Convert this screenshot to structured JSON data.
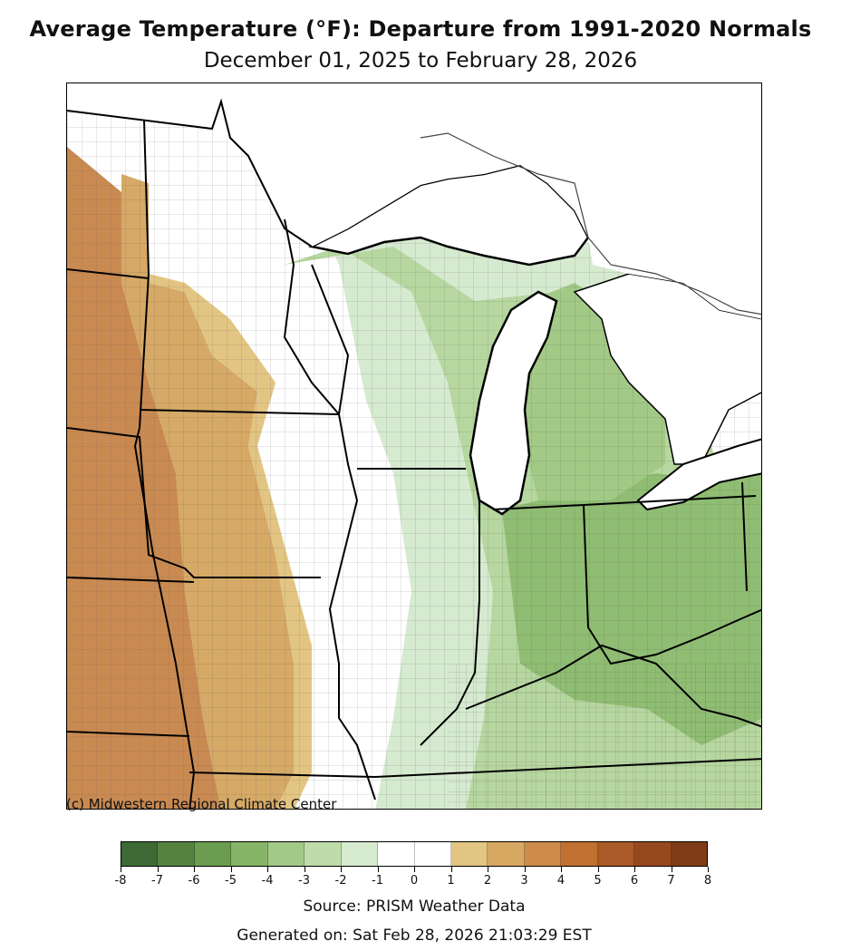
{
  "title": "Average Temperature (°F): Departure from 1991-2020 Normals",
  "subtitle": "December 01, 2025 to February 28, 2026",
  "copyright": "(c) Midwestern Regional Climate Center",
  "legend": {
    "ticks": [
      "-8",
      "-7",
      "-6",
      "-5",
      "-4",
      "-3",
      "-2",
      "-1",
      "0",
      "1",
      "2",
      "3",
      "4",
      "5",
      "6",
      "7",
      "8"
    ],
    "colors": [
      "#3e6b35",
      "#54833f",
      "#6b9d51",
      "#86b567",
      "#a3c986",
      "#bedcaa",
      "#d6ead0",
      "#ffffff",
      "#ffffff",
      "#e3c583",
      "#d7a862",
      "#cd8c4a",
      "#c0702f",
      "#aa5a26",
      "#97491e",
      "#7e3d18"
    ]
  },
  "map": {
    "region": "Midwest",
    "colors": {
      "water": "#ffffff",
      "warm_far": "#c98a52",
      "warm_mid": "#d6a966",
      "warm_near": "#e3c583",
      "neutral": "#ffffff",
      "cool_light": "#d6ead0",
      "cool_mid": "#b7d7a0",
      "cool_dark": "#8fbd73"
    }
  },
  "source": "Source: PRISM Weather Data",
  "generated": "Generated on: Sat Feb 28, 2026 21:03:29 EST"
}
